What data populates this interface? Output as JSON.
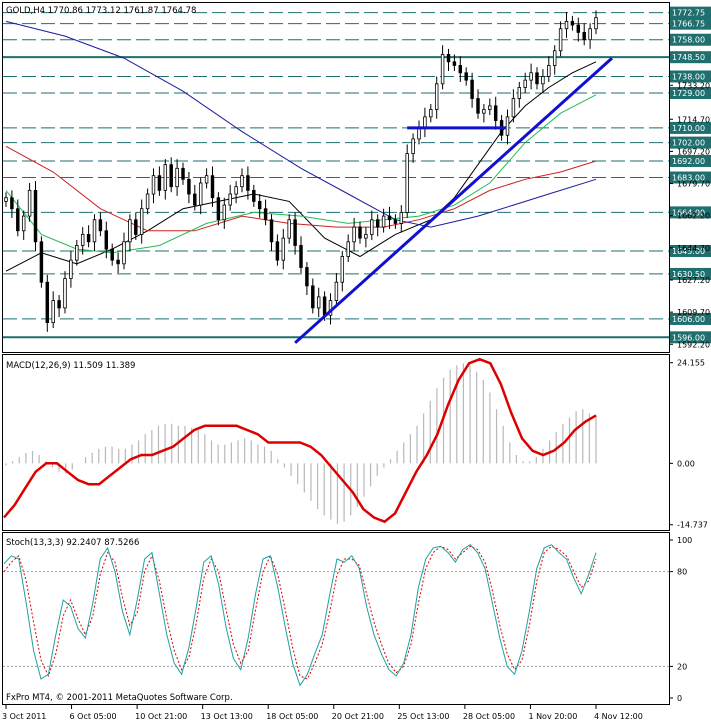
{
  "symbol_header": "GOLD,H4  1770.86 1773.12 1761.87 1764.78",
  "macd_header": "MACD(12,26,9) 11.509 11.389",
  "stoch_header": "Stoch(13,3,3) 92.2407 87.5266",
  "copyright": "FxPro MT4, © 2001-2011 MetaQuotes Software Corp.",
  "colors": {
    "level_box": "#1f6f6f",
    "level_line": "#1f6f6f",
    "trend_line": "#1010d0",
    "ma_black": "#000000",
    "ma_red": "#cc2020",
    "ma_green": "#22bb55",
    "ma_blue": "#1a1aa0",
    "macd_signal": "#dd0000",
    "macd_hist": "#b8b8b8",
    "stoch_main": "#20a0a0",
    "stoch_signal": "#dd0000"
  },
  "chart_data": [
    {
      "type": "candlestick",
      "title": "GOLD,H4",
      "ylim": [
        1588,
        1778
      ],
      "price_levels": [
        {
          "label": "1772.75",
          "value": 1772.75,
          "boxed": true
        },
        {
          "label": "1766.75",
          "value": 1766.75,
          "boxed": true
        },
        {
          "label": "1758.00",
          "value": 1758.0,
          "boxed": true
        },
        {
          "label": "1748.50",
          "value": 1748.5,
          "boxed": true,
          "solid": true
        },
        {
          "label": "1738.00",
          "value": 1738.0,
          "boxed": true
        },
        {
          "label": "1729.00",
          "value": 1729.0,
          "boxed": true
        },
        {
          "label": "1710.00",
          "value": 1710.0,
          "boxed": true
        },
        {
          "label": "1702.00",
          "value": 1702.0,
          "boxed": true
        },
        {
          "label": "1692.00",
          "value": 1692.0,
          "boxed": true
        },
        {
          "label": "1683.00",
          "value": 1683.0,
          "boxed": true
        },
        {
          "label": "1664.00",
          "value": 1664.0,
          "boxed": true
        },
        {
          "label": "1643.00",
          "value": 1643.0,
          "boxed": true
        },
        {
          "label": "1630.50",
          "value": 1630.5,
          "boxed": true
        },
        {
          "label": "1606.00",
          "value": 1606.0,
          "boxed": true
        },
        {
          "label": "1596.00",
          "value": 1596.0,
          "boxed": true,
          "solid": true
        }
      ],
      "axis_ticks": [
        {
          "label": "1733.20",
          "value": 1733.2
        },
        {
          "label": "1714.70",
          "value": 1714.7
        },
        {
          "label": "1697.20",
          "value": 1697.2
        },
        {
          "label": "1679.70",
          "value": 1679.7
        },
        {
          "label": "1662.20",
          "value": 1662.2
        },
        {
          "label": "1644.70",
          "value": 1644.7
        },
        {
          "label": "1627.20",
          "value": 1627.2
        },
        {
          "label": "1609.70",
          "value": 1609.7
        },
        {
          "label": "1592.20",
          "value": 1592.2
        }
      ],
      "closes": [
        1672,
        1666,
        1654,
        1662,
        1676,
        1648,
        1626,
        1604,
        1616,
        1612,
        1628,
        1638,
        1646,
        1652,
        1648,
        1660,
        1654,
        1644,
        1638,
        1636,
        1648,
        1660,
        1652,
        1666,
        1674,
        1684,
        1676,
        1690,
        1678,
        1688,
        1682,
        1674,
        1668,
        1680,
        1684,
        1672,
        1660,
        1668,
        1674,
        1678,
        1684,
        1676,
        1670,
        1666,
        1660,
        1648,
        1638,
        1650,
        1660,
        1646,
        1634,
        1624,
        1612,
        1618,
        1608,
        1616,
        1626,
        1640,
        1648,
        1656,
        1650,
        1652,
        1660,
        1656,
        1662,
        1660,
        1658,
        1664,
        1696,
        1704,
        1710,
        1716,
        1720,
        1734,
        1750,
        1746,
        1744,
        1740,
        1736,
        1726,
        1718,
        1720,
        1722,
        1714,
        1706,
        1716,
        1726,
        1732,
        1736,
        1740,
        1734,
        1738,
        1744,
        1752,
        1764,
        1768,
        1766,
        1762,
        1758,
        1764,
        1770
      ],
      "moving_averages": [
        {
          "color": "black",
          "points": [
            [
              0,
              1632
            ],
            [
              6,
              1642
            ],
            [
              12,
              1636
            ],
            [
              18,
              1644
            ],
            [
              24,
              1654
            ],
            [
              30,
              1666
            ],
            [
              36,
              1670
            ],
            [
              42,
              1674
            ],
            [
              48,
              1670
            ],
            [
              54,
              1650
            ],
            [
              60,
              1640
            ],
            [
              66,
              1652
            ],
            [
              72,
              1660
            ],
            [
              76,
              1672
            ],
            [
              80,
              1690
            ],
            [
              84,
              1708
            ],
            [
              88,
              1722
            ],
            [
              92,
              1732
            ],
            [
              96,
              1740
            ],
            [
              100,
              1746
            ]
          ]
        },
        {
          "color": "red",
          "points": [
            [
              0,
              1700
            ],
            [
              8,
              1686
            ],
            [
              16,
              1666
            ],
            [
              24,
              1654
            ],
            [
              32,
              1654
            ],
            [
              40,
              1662
            ],
            [
              48,
              1658
            ],
            [
              56,
              1656
            ],
            [
              64,
              1656
            ],
            [
              70,
              1660
            ],
            [
              76,
              1666
            ],
            [
              82,
              1676
            ],
            [
              88,
              1682
            ],
            [
              94,
              1686
            ],
            [
              100,
              1692
            ]
          ]
        },
        {
          "color": "green",
          "points": [
            [
              0,
              1676
            ],
            [
              6,
              1652
            ],
            [
              12,
              1644
            ],
            [
              18,
              1642
            ],
            [
              26,
              1646
            ],
            [
              34,
              1658
            ],
            [
              42,
              1664
            ],
            [
              50,
              1662
            ],
            [
              58,
              1658
            ],
            [
              64,
              1660
            ],
            [
              70,
              1662
            ],
            [
              76,
              1668
            ],
            [
              82,
              1680
            ],
            [
              88,
              1702
            ],
            [
              94,
              1718
            ],
            [
              100,
              1728
            ]
          ]
        },
        {
          "color": "blue",
          "points": [
            [
              0,
              1768
            ],
            [
              10,
              1760
            ],
            [
              20,
              1748
            ],
            [
              30,
              1730
            ],
            [
              40,
              1708
            ],
            [
              50,
              1688
            ],
            [
              58,
              1674
            ],
            [
              66,
              1660
            ],
            [
              72,
              1656
            ],
            [
              80,
              1662
            ],
            [
              86,
              1668
            ],
            [
              92,
              1674
            ],
            [
              100,
              1682
            ]
          ]
        }
      ],
      "trend_lines": [
        {
          "from": [
            49,
            1593
          ],
          "to": [
            100,
            1748
          ]
        },
        {
          "from": [
            68,
            1710
          ],
          "to": [
            82,
            1710
          ]
        }
      ]
    },
    {
      "type": "bar+line",
      "title": "MACD(12,26,9)",
      "ylim": [
        -16,
        26
      ],
      "axis_ticks": [
        {
          "label": "24.155",
          "value": 24.155
        },
        {
          "label": "0.00",
          "value": 0.0
        },
        {
          "label": "-14.737",
          "value": -14.737
        }
      ],
      "macd_histogram": [
        -0.5,
        0.5,
        1.5,
        2.5,
        3.0,
        2.0,
        0.5,
        -1.0,
        -2.0,
        -2.5,
        -1.5,
        0,
        1.5,
        2.5,
        3.5,
        4.0,
        4.0,
        3.5,
        3.5,
        4.5,
        5.5,
        7.0,
        8.0,
        9.0,
        9.5,
        9.5,
        9.0,
        9.0,
        8.5,
        8.0,
        7.0,
        5.5,
        4.5,
        4.5,
        5.0,
        5.5,
        6.0,
        5.5,
        4.5,
        4.0,
        3.0,
        1.0,
        -1.0,
        -3.0,
        -5.0,
        -7.0,
        -9.0,
        -11.0,
        -12.5,
        -13.5,
        -14.5,
        -14.0,
        -12.5,
        -10.5,
        -8.0,
        -5.5,
        -3.0,
        -1.0,
        1.0,
        3.0,
        5.0,
        7.0,
        9.0,
        12.0,
        15.0,
        18.0,
        20.5,
        22.5,
        23.5,
        24.0,
        23.5,
        22.0,
        20.0,
        17.0,
        13.0,
        9.0,
        5.0,
        2.0,
        0.5,
        0.5,
        1.5,
        3.5,
        5.5,
        7.5,
        9.5,
        11.0,
        12.5,
        13.0,
        12.0,
        11.5
      ],
      "macd_signal": [
        -13,
        -10,
        -6,
        -2,
        0,
        0,
        -2,
        -4,
        -5,
        -5,
        -3,
        -1,
        1,
        2,
        2,
        3,
        4,
        6,
        8,
        9,
        9,
        9,
        9,
        8,
        7,
        5,
        5,
        5,
        5,
        4,
        2,
        -1,
        -4,
        -7,
        -11,
        -13,
        -14,
        -12,
        -7,
        -2,
        2,
        7,
        14,
        20,
        24,
        25,
        24,
        19,
        12,
        6,
        3,
        2,
        3,
        5,
        8,
        10,
        11.5
      ]
    },
    {
      "type": "line",
      "title": "Stoch(13,3,3)",
      "ylim": [
        0,
        100
      ],
      "axis_ticks": [
        {
          "label": "100",
          "value": 100
        },
        {
          "label": "80",
          "value": 80
        },
        {
          "label": "20",
          "value": 20
        },
        {
          "label": "0",
          "value": 0
        }
      ],
      "stoch_main": [
        85,
        90,
        88,
        60,
        30,
        12,
        15,
        40,
        62,
        58,
        44,
        38,
        60,
        88,
        95,
        80,
        55,
        40,
        62,
        88,
        92,
        66,
        40,
        22,
        15,
        32,
        58,
        86,
        90,
        72,
        45,
        25,
        18,
        38,
        66,
        88,
        90,
        70,
        45,
        22,
        8,
        15,
        28,
        40,
        65,
        88,
        86,
        90,
        82,
        58,
        40,
        28,
        18,
        14,
        22,
        40,
        70,
        88,
        95,
        96,
        92,
        86,
        94,
        97,
        92,
        82,
        60,
        38,
        20,
        15,
        30,
        55,
        82,
        95,
        97,
        92,
        88,
        76,
        66,
        78,
        92
      ],
      "stoch_signal": [
        80,
        86,
        90,
        74,
        48,
        24,
        14,
        28,
        52,
        62,
        50,
        40,
        52,
        78,
        92,
        86,
        64,
        46,
        54,
        80,
        90,
        74,
        50,
        30,
        18,
        26,
        48,
        76,
        88,
        80,
        56,
        34,
        22,
        30,
        56,
        80,
        90,
        78,
        56,
        32,
        14,
        12,
        22,
        34,
        54,
        78,
        88,
        88,
        84,
        66,
        48,
        34,
        22,
        16,
        20,
        34,
        60,
        82,
        92,
        96,
        94,
        88,
        92,
        96,
        94,
        86,
        68,
        46,
        28,
        18,
        24,
        46,
        74,
        92,
        96,
        94,
        90,
        80,
        70,
        74,
        88
      ]
    }
  ],
  "x_axis": {
    "labels": [
      "3 Oct 2011",
      "6 Oct 05:00",
      "10 Oct 21:00",
      "13 Oct 13:00",
      "18 Oct 05:00",
      "20 Oct 21:00",
      "25 Oct 13:00",
      "28 Oct 05:00",
      "1 Nov 20:00",
      "4 Nov 12:00"
    ]
  }
}
